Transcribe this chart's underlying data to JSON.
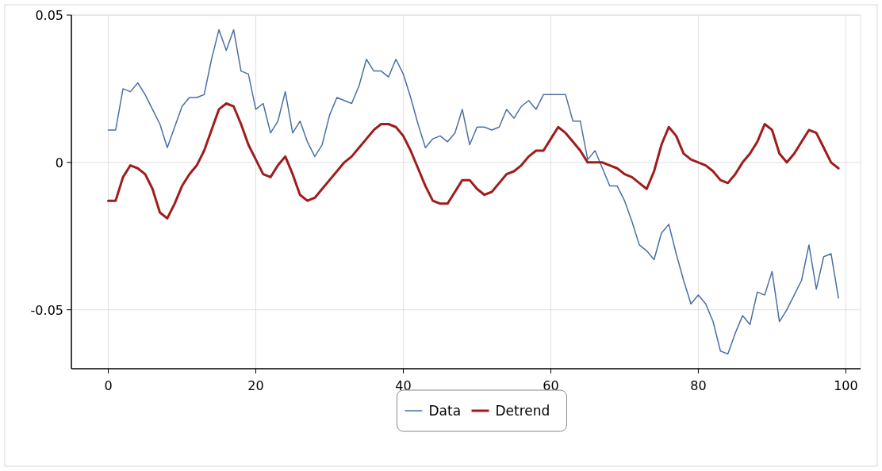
{
  "chart_data": {
    "type": "line",
    "xlim": [
      -5,
      102
    ],
    "xticks": [
      0,
      20,
      40,
      60,
      80,
      100
    ],
    "ylim": [
      -0.07,
      0.05
    ],
    "yticks": [
      -0.05,
      0,
      0.05
    ],
    "grid": true,
    "legend": "bottom",
    "x": [
      0,
      1,
      2,
      3,
      4,
      5,
      6,
      7,
      8,
      9,
      10,
      11,
      12,
      13,
      14,
      15,
      16,
      17,
      18,
      19,
      20,
      21,
      22,
      23,
      24,
      25,
      26,
      27,
      28,
      29,
      30,
      31,
      32,
      33,
      34,
      35,
      36,
      37,
      38,
      39,
      40,
      41,
      42,
      43,
      44,
      45,
      46,
      47,
      48,
      49,
      50,
      51,
      52,
      53,
      54,
      55,
      56,
      57,
      58,
      59,
      60,
      61,
      62,
      63,
      64,
      65,
      66,
      67,
      68,
      69,
      70,
      71,
      72,
      73,
      74,
      75,
      76,
      77,
      78,
      79,
      80,
      81,
      82,
      83,
      84,
      85,
      86,
      87,
      88,
      89,
      90,
      91,
      92,
      93,
      94,
      95,
      96,
      97,
      98,
      99
    ],
    "series": [
      {
        "name": "Data",
        "color": "#4a6fa5",
        "values": [
          0.011,
          0.011,
          0.025,
          0.024,
          0.027,
          0.023,
          0.018,
          0.013,
          0.005,
          0.012,
          0.019,
          0.022,
          0.022,
          0.023,
          0.035,
          0.045,
          0.038,
          0.045,
          0.031,
          0.03,
          0.018,
          0.02,
          0.01,
          0.014,
          0.024,
          0.01,
          0.014,
          0.007,
          0.002,
          0.006,
          0.016,
          0.022,
          0.021,
          0.02,
          0.026,
          0.035,
          0.031,
          0.031,
          0.029,
          0.035,
          0.03,
          0.022,
          0.013,
          0.005,
          0.008,
          0.009,
          0.007,
          0.01,
          0.018,
          0.006,
          0.012,
          0.012,
          0.011,
          0.012,
          0.018,
          0.015,
          0.019,
          0.021,
          0.018,
          0.023,
          0.023,
          0.023,
          0.023,
          0.014,
          0.014,
          0.001,
          0.004,
          -0.002,
          -0.008,
          -0.008,
          -0.013,
          -0.02,
          -0.028,
          -0.03,
          -0.033,
          -0.024,
          -0.021,
          -0.031,
          -0.04,
          -0.048,
          -0.045,
          -0.048,
          -0.054,
          -0.064,
          -0.065,
          -0.058,
          -0.052,
          -0.055,
          -0.044,
          -0.045,
          -0.037,
          -0.054,
          -0.05,
          -0.045,
          -0.04,
          -0.028,
          -0.043,
          -0.032,
          -0.031,
          -0.046
        ]
      },
      {
        "name": "Detrend",
        "color": "#a01c1c",
        "values": [
          -0.013,
          -0.013,
          -0.005,
          -0.001,
          -0.002,
          -0.004,
          -0.009,
          -0.017,
          -0.019,
          -0.014,
          -0.008,
          -0.004,
          -0.001,
          0.004,
          0.011,
          0.018,
          0.02,
          0.019,
          0.013,
          0.006,
          0.001,
          -0.004,
          -0.005,
          -0.001,
          0.002,
          -0.004,
          -0.011,
          -0.013,
          -0.012,
          -0.009,
          -0.006,
          -0.003,
          0.0,
          0.002,
          0.005,
          0.008,
          0.011,
          0.013,
          0.013,
          0.012,
          0.009,
          0.004,
          -0.002,
          -0.008,
          -0.013,
          -0.014,
          -0.014,
          -0.01,
          -0.006,
          -0.006,
          -0.009,
          -0.011,
          -0.01,
          -0.007,
          -0.004,
          -0.003,
          -0.001,
          0.002,
          0.004,
          0.004,
          0.008,
          0.012,
          0.01,
          0.007,
          0.004,
          0.0,
          0.0,
          0.0,
          -0.001,
          -0.002,
          -0.004,
          -0.005,
          -0.007,
          -0.009,
          -0.003,
          0.006,
          0.012,
          0.009,
          0.003,
          0.001,
          0.0,
          -0.001,
          -0.003,
          -0.006,
          -0.007,
          -0.004,
          0.0,
          0.003,
          0.007,
          0.013,
          0.011,
          0.003,
          0.0,
          0.003,
          0.007,
          0.011,
          0.01,
          0.005,
          0.0,
          -0.002
        ]
      }
    ]
  }
}
